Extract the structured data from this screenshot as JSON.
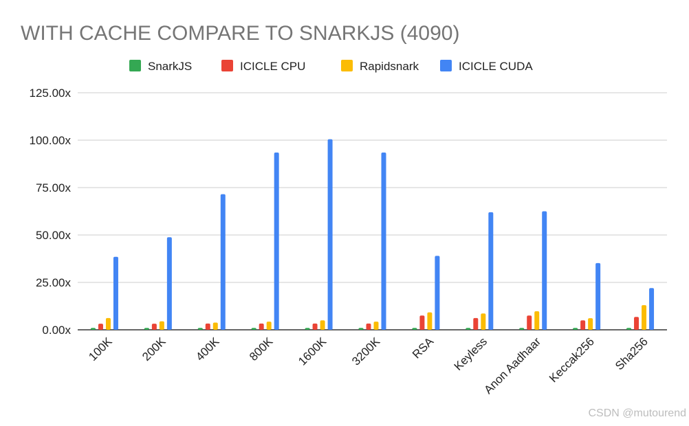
{
  "chart_data": {
    "type": "bar",
    "title": "WITH CACHE COMPARE TO SNARKJS (4090)",
    "xlabel": "",
    "ylabel": "",
    "categories": [
      "100K",
      "200K",
      "400K",
      "800K",
      "1600K",
      "3200K",
      "RSA",
      "Keyless",
      "Anon Aadhaar",
      "Keccak256",
      "Sha256"
    ],
    "series": [
      {
        "name": "SnarkJS",
        "color": "#34a853",
        "values": [
          1,
          1,
          1,
          1,
          1,
          1,
          1,
          1,
          1,
          1,
          1
        ]
      },
      {
        "name": "ICICLE CPU",
        "color": "#ea4335",
        "values": [
          3.2,
          3.2,
          3.3,
          3.3,
          3.3,
          3.3,
          7.5,
          6.2,
          7.5,
          5,
          6.8
        ]
      },
      {
        "name": "Rapidsnark",
        "color": "#fbbc04",
        "values": [
          6.2,
          4.5,
          3.8,
          4.3,
          5,
          4.3,
          9.2,
          8.6,
          9.8,
          6.1,
          13
        ]
      },
      {
        "name": "ICICLE CUDA",
        "color": "#4285f4",
        "values": [
          38.5,
          48.8,
          71.5,
          93.5,
          100.5,
          93.5,
          39,
          62,
          62.5,
          35.2,
          22
        ]
      }
    ],
    "yticks": [
      "0.00x",
      "25.00x",
      "50.00x",
      "75.00x",
      "100.00x",
      "125.00x"
    ],
    "ylim": [
      0,
      125
    ],
    "grid": true,
    "legend_position": "top"
  },
  "watermark": "CSDN @mutourend"
}
